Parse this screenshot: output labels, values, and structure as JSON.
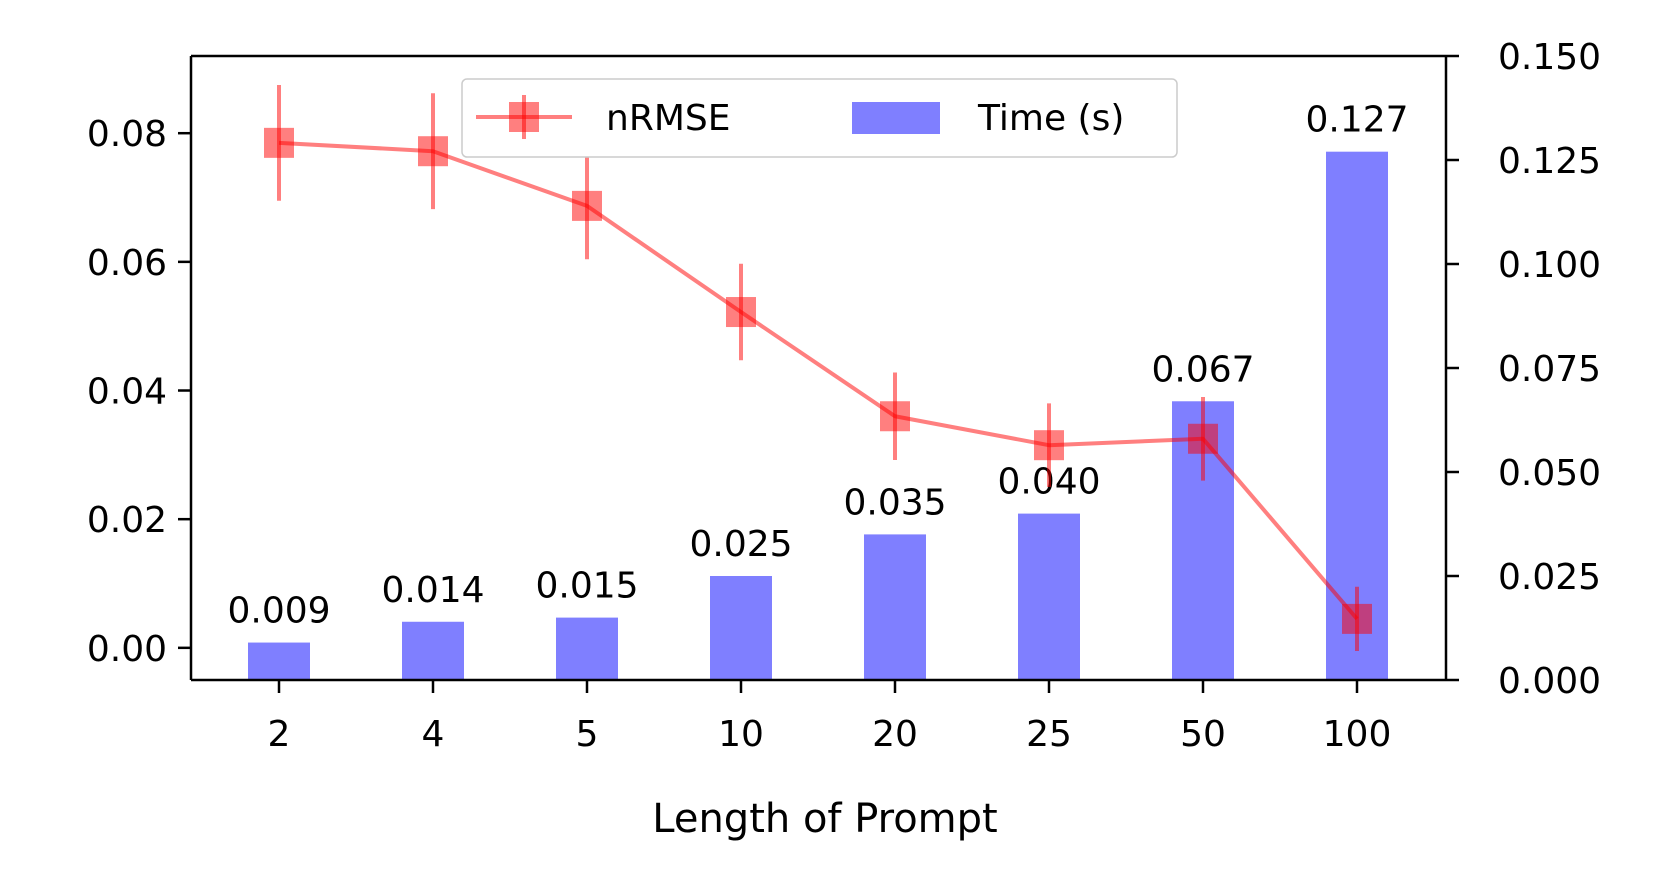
{
  "chart_data": {
    "type": "bar+line",
    "title": "",
    "xlabel": "Length of Prompt",
    "categories": [
      "2",
      "4",
      "5",
      "10",
      "20",
      "25",
      "50",
      "100"
    ],
    "series": [
      {
        "name": "nRMSE",
        "kind": "line",
        "axis": "left",
        "color": "#ff0000",
        "marker": "square",
        "values": [
          0.0785,
          0.0772,
          0.0687,
          0.0522,
          0.036,
          0.0315,
          0.0325,
          0.0045
        ],
        "errors": [
          0.009,
          0.009,
          0.0083,
          0.0075,
          0.0068,
          0.0065,
          0.0065,
          0.005
        ]
      },
      {
        "name": "Time (s)",
        "kind": "bar",
        "axis": "right",
        "color": "#0000ff",
        "values": [
          0.009,
          0.014,
          0.015,
          0.025,
          0.035,
          0.04,
          0.067,
          0.127
        ],
        "value_labels": [
          "0.009",
          "0.014",
          "0.015",
          "0.025",
          "0.035",
          "0.040",
          "0.067",
          "0.127"
        ]
      }
    ],
    "y_left": {
      "ylim": [
        -0.005,
        0.092
      ],
      "ticks": [
        0.0,
        0.02,
        0.04,
        0.06,
        0.08
      ],
      "tick_labels": [
        "0.00",
        "0.02",
        "0.04",
        "0.06",
        "0.08"
      ]
    },
    "y_right": {
      "ylim": [
        0.0,
        0.15
      ],
      "ticks": [
        0.0,
        0.025,
        0.05,
        0.075,
        0.1,
        0.125,
        0.15
      ],
      "tick_labels": [
        "0.000",
        "0.025",
        "0.050",
        "0.075",
        "0.100",
        "0.125",
        "0.150"
      ]
    },
    "legend": {
      "position": "top-center",
      "entries": [
        "nRMSE",
        "Time (s)"
      ]
    },
    "grid": false
  }
}
